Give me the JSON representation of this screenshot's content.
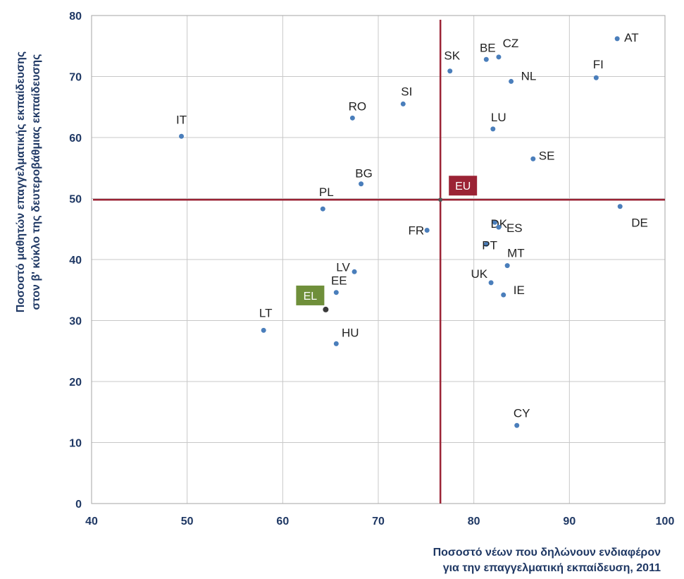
{
  "chart_data": {
    "type": "scatter",
    "title": "",
    "xlabel_lines": [
      "Ποσοστό νέων που δηλώνουν ενδιαφέρον",
      "για την επαγγελματική εκπαίδευση, 2011"
    ],
    "ylabel_lines": [
      "Ποσοστό μαθητών επαγγελματικής εκπαίδευσης",
      "στον β' κύκλο της δευτεροβάθμιας εκπαίδευσης"
    ],
    "xlim": [
      40,
      100
    ],
    "ylim": [
      0,
      80
    ],
    "xticks": [
      40,
      50,
      60,
      70,
      80,
      90,
      100
    ],
    "yticks": [
      0,
      10,
      20,
      30,
      40,
      50,
      60,
      70,
      80
    ],
    "grid": true,
    "point_color": "#4a7ebb",
    "reference_line_color": "#9b2335",
    "reference_lines": {
      "x": 76.5,
      "y": 49.8
    },
    "points": [
      {
        "label": "IT",
        "x": 49.4,
        "y": 60.2
      },
      {
        "label": "RO",
        "x": 67.3,
        "y": 63.2
      },
      {
        "label": "SI",
        "x": 72.6,
        "y": 65.5
      },
      {
        "label": "SK",
        "x": 77.5,
        "y": 70.9
      },
      {
        "label": "BE",
        "x": 81.3,
        "y": 72.8
      },
      {
        "label": "CZ",
        "x": 82.6,
        "y": 73.2
      },
      {
        "label": "NL",
        "x": 83.9,
        "y": 69.2
      },
      {
        "label": "AT",
        "x": 95.0,
        "y": 76.2
      },
      {
        "label": "FI",
        "x": 92.8,
        "y": 69.8
      },
      {
        "label": "LU",
        "x": 82.0,
        "y": 61.4
      },
      {
        "label": "SE",
        "x": 86.2,
        "y": 56.5
      },
      {
        "label": "BG",
        "x": 68.2,
        "y": 52.4
      },
      {
        "label": "PL",
        "x": 64.2,
        "y": 48.3
      },
      {
        "label": "DE",
        "x": 95.3,
        "y": 48.7
      },
      {
        "label": "FR",
        "x": 75.1,
        "y": 44.8
      },
      {
        "label": "DK",
        "x": 82.2,
        "y": 46.1
      },
      {
        "label": "ES",
        "x": 82.6,
        "y": 45.3
      },
      {
        "label": "PT",
        "x": 81.3,
        "y": 42.5
      },
      {
        "label": "MT",
        "x": 83.5,
        "y": 39.0
      },
      {
        "label": "LV",
        "x": 67.5,
        "y": 38.0
      },
      {
        "label": "UK",
        "x": 81.8,
        "y": 36.2
      },
      {
        "label": "IE",
        "x": 83.1,
        "y": 34.2
      },
      {
        "label": "EE",
        "x": 65.6,
        "y": 34.6
      },
      {
        "label": "LT",
        "x": 58.0,
        "y": 28.4
      },
      {
        "label": "HU",
        "x": 65.6,
        "y": 26.2
      },
      {
        "label": "CY",
        "x": 84.5,
        "y": 12.8
      }
    ],
    "highlighted": [
      {
        "label": "EU",
        "x": 76.5,
        "y": 49.8,
        "box_color": "#9b2335"
      },
      {
        "label": "EL",
        "x": 64.5,
        "y": 31.8,
        "box_color": "#6f8f3a"
      }
    ]
  }
}
